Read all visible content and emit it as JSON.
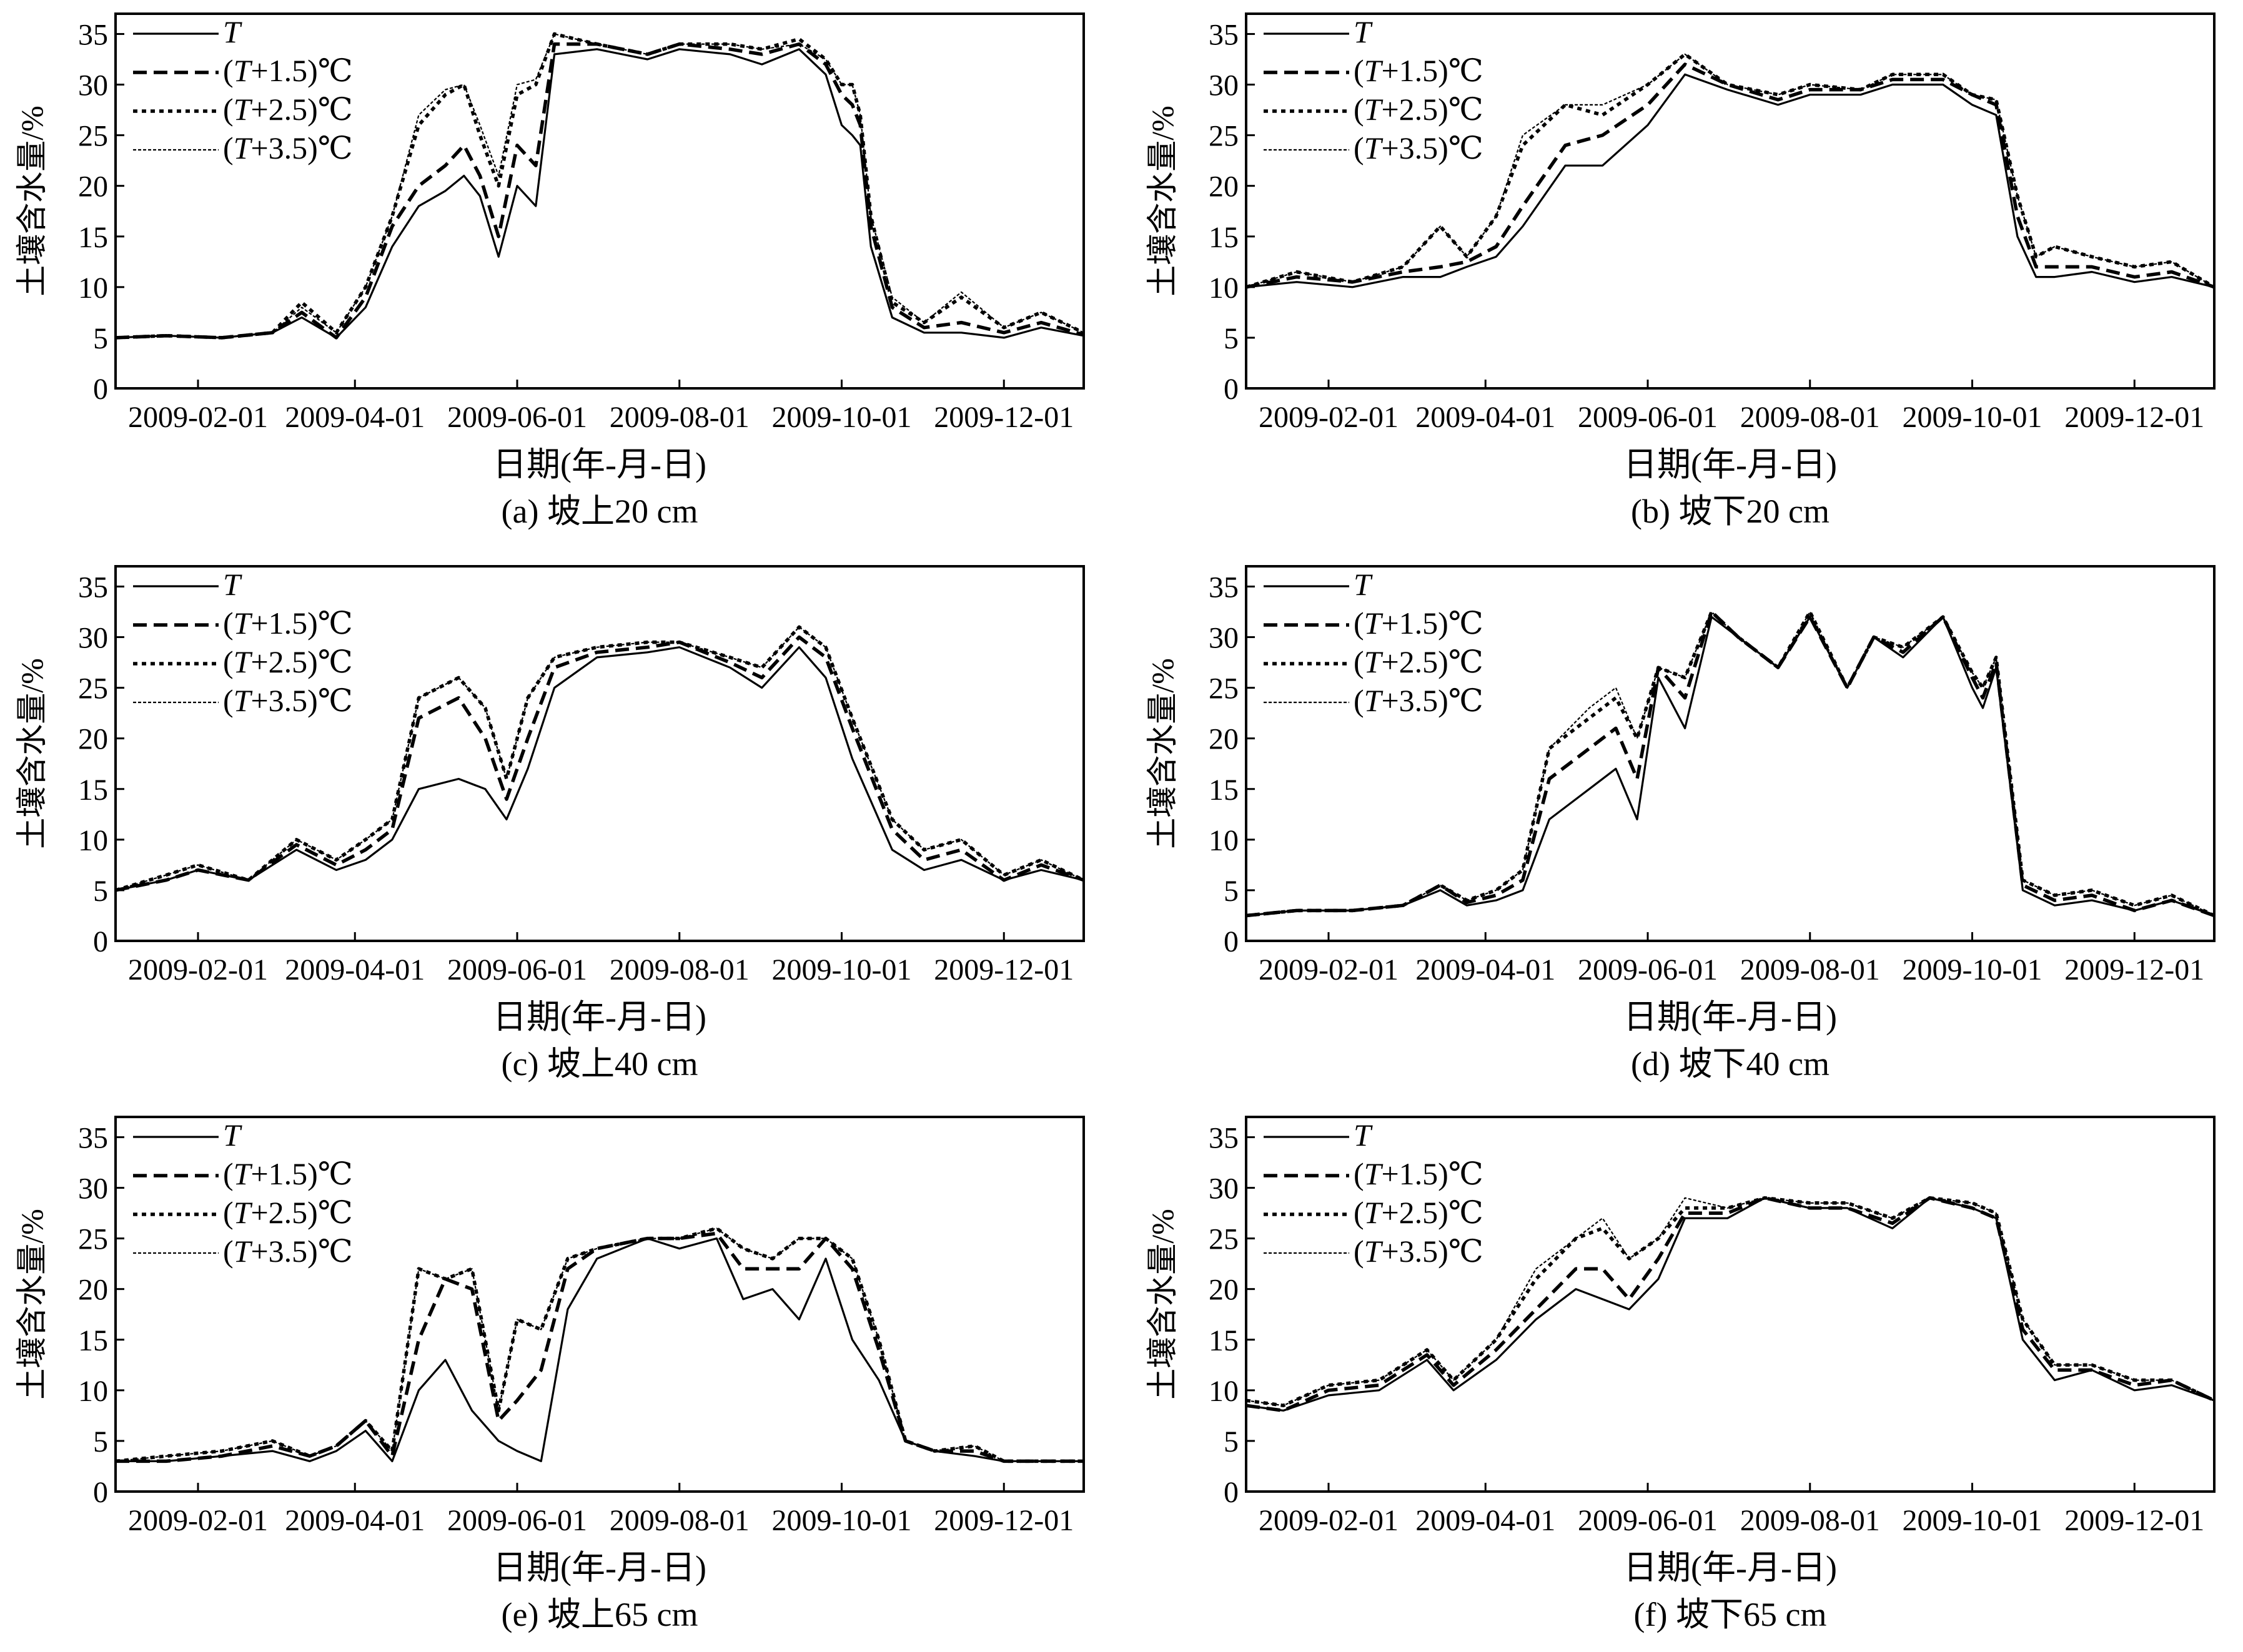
{
  "figure": {
    "ylabel": "土壤含水量/%",
    "xlabel": "日期(年-月-日)",
    "xticks": [
      "2009-02-01",
      "2009-04-01",
      "2009-06-01",
      "2009-08-01",
      "2009-10-01",
      "2009-12-01"
    ],
    "yticks": [
      "0",
      "5",
      "10",
      "15",
      "20",
      "25",
      "30",
      "35"
    ],
    "legend": [
      {
        "key": "T",
        "italic": "T",
        "prefix": "",
        "suffix": "",
        "style": "solid"
      },
      {
        "key": "T15",
        "prefix": "(",
        "italic": "T",
        "suffix": "+1.5)℃",
        "style": "dash"
      },
      {
        "key": "T25",
        "prefix": "(",
        "italic": "T",
        "suffix": "+2.5)℃",
        "style": "dot"
      },
      {
        "key": "T35",
        "prefix": "(",
        "italic": "T",
        "suffix": "+3.5)℃",
        "style": "thin"
      }
    ],
    "line_color": "#000000"
  },
  "chart_data": [
    {
      "type": "line",
      "caption": "(a) 坡上20 cm",
      "xlabel": "日期(年-月-日)",
      "ylabel": "土壤含水量/%",
      "ylim": [
        0,
        37
      ],
      "xlim": [
        "2009-01-01",
        "2009-12-31"
      ],
      "x": [
        "2009-01-01",
        "2009-01-20",
        "2009-02-10",
        "2009-03-01",
        "2009-03-12",
        "2009-03-25",
        "2009-04-05",
        "2009-04-15",
        "2009-04-25",
        "2009-05-05",
        "2009-05-12",
        "2009-05-18",
        "2009-05-25",
        "2009-06-01",
        "2009-06-08",
        "2009-06-15",
        "2009-07-01",
        "2009-07-20",
        "2009-08-01",
        "2009-08-20",
        "2009-09-01",
        "2009-09-15",
        "2009-09-25",
        "2009-10-01",
        "2009-10-05",
        "2009-10-08",
        "2009-10-12",
        "2009-10-20",
        "2009-11-01",
        "2009-11-15",
        "2009-12-01",
        "2009-12-15",
        "2009-12-31"
      ],
      "series": [
        {
          "name": "T",
          "values": [
            5,
            5.2,
            5,
            5.5,
            7,
            5,
            8,
            14,
            18,
            19.5,
            21,
            19,
            13,
            20,
            18,
            33,
            33.5,
            32.5,
            33.5,
            33,
            32,
            33.5,
            31,
            26,
            25,
            24,
            14,
            7,
            5.5,
            5.5,
            5,
            6,
            5.2
          ]
        },
        {
          "name": "(T+1.5)℃",
          "values": [
            5,
            5.2,
            5,
            5.5,
            7.5,
            5,
            9,
            16,
            20,
            22,
            24,
            21,
            15,
            24,
            22,
            34,
            34,
            33,
            34,
            33.5,
            33,
            34,
            32,
            29,
            28,
            26,
            16,
            8,
            6,
            6.5,
            5.5,
            6.5,
            5.3
          ]
        },
        {
          "name": "(T+2.5)℃",
          "values": [
            5,
            5.2,
            5,
            5.5,
            8.5,
            5.5,
            10,
            17,
            26,
            29,
            30,
            25,
            20,
            29,
            30,
            35,
            34,
            33,
            34,
            34,
            33.5,
            34.5,
            32.5,
            30,
            30,
            27,
            17,
            8.5,
            6.5,
            9,
            6,
            7.5,
            5.5
          ]
        },
        {
          "name": "(T+3.5)℃",
          "values": [
            5,
            5.2,
            5,
            5.5,
            8,
            5.5,
            10,
            17,
            27,
            29.5,
            30,
            26,
            21,
            30,
            30.5,
            35,
            34,
            33,
            34,
            34,
            33.5,
            34,
            32.5,
            30,
            30,
            27,
            17,
            9,
            6.5,
            9.5,
            6,
            7.5,
            5.5
          ]
        }
      ]
    },
    {
      "type": "line",
      "caption": "(b) 坡下20 cm",
      "xlabel": "日期(年-月-日)",
      "ylabel": "土壤含水量/%",
      "ylim": [
        0,
        37
      ],
      "xlim": [
        "2009-01-01",
        "2009-12-31"
      ],
      "x": [
        "2009-01-01",
        "2009-01-20",
        "2009-02-10",
        "2009-03-01",
        "2009-03-15",
        "2009-03-25",
        "2009-04-05",
        "2009-04-15",
        "2009-05-01",
        "2009-05-15",
        "2009-06-01",
        "2009-06-15",
        "2009-07-01",
        "2009-07-20",
        "2009-08-01",
        "2009-08-20",
        "2009-09-01",
        "2009-09-20",
        "2009-10-01",
        "2009-10-10",
        "2009-10-18",
        "2009-10-25",
        "2009-11-01",
        "2009-11-15",
        "2009-12-01",
        "2009-12-15",
        "2009-12-31"
      ],
      "series": [
        {
          "name": "T",
          "values": [
            10,
            10.5,
            10,
            11,
            11,
            12,
            13,
            16,
            22,
            22,
            26,
            31,
            29.5,
            28,
            29,
            29,
            30,
            30,
            28,
            27,
            15,
            11,
            11,
            11.5,
            10.5,
            11,
            10
          ]
        },
        {
          "name": "(T+1.5)℃",
          "values": [
            10,
            11,
            10.5,
            11.5,
            12,
            12.5,
            14,
            18,
            24,
            25,
            28,
            32,
            30,
            28.5,
            29.5,
            29.5,
            30.5,
            30.5,
            29,
            28,
            17,
            12,
            12,
            12,
            11,
            11.5,
            10
          ]
        },
        {
          "name": "(T+2.5)℃",
          "values": [
            10,
            11.5,
            10.5,
            12,
            16,
            13,
            17,
            24,
            28,
            27,
            30,
            33,
            30,
            29,
            30,
            29.5,
            31,
            31,
            29,
            28.5,
            19,
            13,
            14,
            13,
            12,
            12.5,
            10
          ]
        },
        {
          "name": "(T+3.5)℃",
          "values": [
            10,
            11.5,
            10.5,
            12,
            16,
            13,
            17,
            25,
            28,
            28,
            30,
            33,
            30,
            29,
            30,
            29.5,
            31,
            31,
            29,
            28.5,
            19,
            13,
            14,
            13,
            12,
            12.5,
            10
          ]
        }
      ]
    },
    {
      "type": "line",
      "caption": "(c) 坡上40 cm",
      "xlabel": "日期(年-月-日)",
      "ylabel": "土壤含水量/%",
      "ylim": [
        0,
        37
      ],
      "xlim": [
        "2009-01-01",
        "2009-12-31"
      ],
      "x": [
        "2009-01-01",
        "2009-01-20",
        "2009-02-01",
        "2009-02-20",
        "2009-03-10",
        "2009-03-25",
        "2009-04-05",
        "2009-04-15",
        "2009-04-25",
        "2009-05-10",
        "2009-05-20",
        "2009-05-28",
        "2009-06-05",
        "2009-06-15",
        "2009-07-01",
        "2009-07-20",
        "2009-08-01",
        "2009-08-20",
        "2009-09-01",
        "2009-09-15",
        "2009-09-25",
        "2009-10-05",
        "2009-10-20",
        "2009-11-01",
        "2009-11-15",
        "2009-12-01",
        "2009-12-15",
        "2009-12-31"
      ],
      "series": [
        {
          "name": "T",
          "values": [
            5,
            6,
            7,
            6,
            9,
            7,
            8,
            10,
            15,
            16,
            15,
            12,
            17,
            25,
            28,
            28.5,
            29,
            27,
            25,
            29,
            26,
            18,
            9,
            7,
            8,
            6,
            7,
            6
          ]
        },
        {
          "name": "(T+1.5)℃",
          "values": [
            5,
            6,
            7,
            6,
            9.5,
            7.5,
            9,
            11,
            22,
            24,
            20,
            14,
            20,
            27,
            28.5,
            29,
            29.5,
            27.5,
            26,
            30,
            28,
            21,
            11,
            8,
            9,
            6,
            7.5,
            6
          ]
        },
        {
          "name": "(T+2.5)℃",
          "values": [
            5,
            6.5,
            7.5,
            6,
            10,
            8,
            10,
            12,
            24,
            26,
            23,
            16,
            24,
            28,
            29,
            29.5,
            29.5,
            28,
            27,
            31,
            29,
            22,
            12,
            9,
            10,
            6.5,
            8,
            6
          ]
        },
        {
          "name": "(T+3.5)℃",
          "values": [
            5,
            6.5,
            7.5,
            6,
            10,
            8,
            10,
            12,
            24,
            26,
            23,
            16,
            24,
            28,
            29,
            29.5,
            29.5,
            28,
            27,
            31,
            29,
            22,
            12,
            9,
            10,
            6.5,
            8,
            6
          ]
        }
      ]
    },
    {
      "type": "line",
      "caption": "(d) 坡下40 cm",
      "xlabel": "日期(年-月-日)",
      "ylabel": "土壤含水量/%",
      "ylim": [
        0,
        37
      ],
      "xlim": [
        "2009-01-01",
        "2009-12-31"
      ],
      "x": [
        "2009-01-01",
        "2009-01-20",
        "2009-02-10",
        "2009-03-01",
        "2009-03-15",
        "2009-03-25",
        "2009-04-05",
        "2009-04-15",
        "2009-04-25",
        "2009-05-10",
        "2009-05-20",
        "2009-05-28",
        "2009-06-05",
        "2009-06-15",
        "2009-06-25",
        "2009-07-05",
        "2009-07-20",
        "2009-08-01",
        "2009-08-15",
        "2009-08-25",
        "2009-09-05",
        "2009-09-20",
        "2009-10-01",
        "2009-10-05",
        "2009-10-10",
        "2009-10-20",
        "2009-11-01",
        "2009-11-15",
        "2009-12-01",
        "2009-12-15",
        "2009-12-31"
      ],
      "series": [
        {
          "name": "T",
          "values": [
            2.5,
            3,
            3,
            3.5,
            5,
            3.5,
            4,
            5,
            12,
            15,
            17,
            12,
            26,
            21,
            32,
            30,
            27,
            32,
            25,
            30,
            28,
            32,
            25,
            23,
            27,
            5,
            3.5,
            4,
            3,
            4,
            2.5
          ]
        },
        {
          "name": "(T+1.5)℃",
          "values": [
            2.5,
            3,
            3,
            3.5,
            5.5,
            3.8,
            4.5,
            6,
            16,
            19,
            21,
            16,
            27,
            24,
            32.5,
            30,
            27,
            32,
            25,
            30,
            28.5,
            32,
            26,
            24,
            27.5,
            5.5,
            4,
            4.5,
            3,
            4,
            2.5
          ]
        },
        {
          "name": "(T+2.5)℃",
          "values": [
            2.5,
            3,
            3,
            3.5,
            5.5,
            4,
            5,
            7,
            19,
            22,
            24,
            20,
            27,
            26,
            32.5,
            30,
            27,
            32.5,
            25,
            30,
            29,
            32,
            26.5,
            25,
            28,
            6,
            4.5,
            5,
            3.5,
            4.5,
            2.5
          ]
        },
        {
          "name": "(T+3.5)℃",
          "values": [
            2.5,
            3,
            3,
            3.5,
            5.5,
            4,
            5,
            7,
            19,
            23,
            25,
            20,
            27,
            26,
            32.5,
            30,
            27,
            32.5,
            25,
            30,
            29,
            32,
            26.5,
            25,
            28,
            6,
            4.5,
            5,
            3.5,
            4.5,
            2.5
          ]
        }
      ]
    },
    {
      "type": "line",
      "caption": "(e) 坡上65 cm",
      "xlabel": "日期(年-月-日)",
      "ylabel": "土壤含水量/%",
      "ylim": [
        0,
        37
      ],
      "xlim": [
        "2009-01-01",
        "2009-12-31"
      ],
      "x": [
        "2009-01-01",
        "2009-01-20",
        "2009-02-10",
        "2009-03-01",
        "2009-03-15",
        "2009-03-25",
        "2009-04-05",
        "2009-04-15",
        "2009-04-25",
        "2009-05-05",
        "2009-05-15",
        "2009-05-25",
        "2009-06-01",
        "2009-06-10",
        "2009-06-20",
        "2009-07-01",
        "2009-07-20",
        "2009-08-01",
        "2009-08-15",
        "2009-08-25",
        "2009-09-05",
        "2009-09-15",
        "2009-09-25",
        "2009-10-05",
        "2009-10-15",
        "2009-10-25",
        "2009-11-05",
        "2009-11-20",
        "2009-12-01",
        "2009-12-15",
        "2009-12-31"
      ],
      "series": [
        {
          "name": "T",
          "values": [
            3,
            3,
            3.5,
            4,
            3,
            4,
            6,
            3,
            10,
            13,
            8,
            5,
            4,
            3,
            18,
            23,
            25,
            24,
            25,
            19,
            20,
            17,
            23,
            15,
            11,
            5,
            4,
            3.5,
            3,
            3,
            3
          ]
        },
        {
          "name": "(T+1.5)℃",
          "values": [
            3,
            3,
            3.5,
            4.5,
            3.5,
            4.5,
            7,
            3.5,
            15,
            21,
            20,
            7,
            9,
            12,
            22,
            24,
            25,
            25,
            25.5,
            22,
            22,
            22,
            25,
            22,
            14,
            5,
            4,
            4,
            3,
            3,
            3
          ]
        },
        {
          "name": "(T+2.5)℃",
          "values": [
            3,
            3.5,
            4,
            5,
            3.5,
            4.5,
            7,
            4,
            22,
            21,
            22,
            8,
            17,
            16,
            23,
            24,
            25,
            25,
            26,
            24,
            23,
            25,
            25,
            23,
            15,
            5,
            4,
            4.5,
            3,
            3,
            3
          ]
        },
        {
          "name": "(T+3.5)℃",
          "values": [
            3,
            3.5,
            4,
            5,
            3.5,
            4.5,
            7,
            4,
            22,
            21,
            22,
            8,
            17,
            16,
            23,
            24,
            25,
            25,
            26,
            24,
            23,
            25,
            25,
            23,
            15,
            5,
            4,
            4.5,
            3,
            3,
            3
          ]
        }
      ]
    },
    {
      "type": "line",
      "caption": "(f) 坡下65 cm",
      "xlabel": "日期(年-月-日)",
      "ylabel": "土壤含水量/%",
      "ylim": [
        0,
        37
      ],
      "xlim": [
        "2009-01-01",
        "2009-12-31"
      ],
      "x": [
        "2009-01-01",
        "2009-01-15",
        "2009-02-01",
        "2009-02-20",
        "2009-03-10",
        "2009-03-20",
        "2009-04-05",
        "2009-04-20",
        "2009-05-05",
        "2009-05-15",
        "2009-05-25",
        "2009-06-05",
        "2009-06-15",
        "2009-07-01",
        "2009-07-15",
        "2009-08-01",
        "2009-08-15",
        "2009-09-01",
        "2009-09-15",
        "2009-10-01",
        "2009-10-10",
        "2009-10-20",
        "2009-11-01",
        "2009-11-15",
        "2009-12-01",
        "2009-12-15",
        "2009-12-31"
      ],
      "series": [
        {
          "name": "T",
          "values": [
            8.5,
            8,
            9.5,
            10,
            13,
            10,
            13,
            17,
            20,
            19,
            18,
            21,
            27,
            27,
            29,
            28,
            28,
            26,
            29,
            28,
            27,
            15,
            11,
            12,
            10,
            10.5,
            9
          ]
        },
        {
          "name": "(T+1.5)℃",
          "values": [
            8.5,
            8,
            10,
            10.5,
            13.5,
            10.5,
            14,
            18,
            22,
            22,
            19,
            23,
            27.5,
            27.5,
            29,
            28,
            28,
            26.5,
            29,
            28,
            27,
            16,
            12,
            12,
            10.5,
            11,
            9
          ]
        },
        {
          "name": "(T+2.5)℃",
          "values": [
            9,
            8.5,
            10.5,
            11,
            14,
            11,
            15,
            21,
            25,
            26,
            23,
            25,
            28,
            28,
            29,
            28.5,
            28.5,
            27,
            29,
            28.5,
            27.5,
            17,
            12.5,
            12.5,
            11,
            11,
            9
          ]
        },
        {
          "name": "(T+3.5)℃",
          "values": [
            9,
            8.5,
            10.5,
            11,
            14,
            11,
            15,
            22,
            25,
            27,
            23,
            25,
            29,
            28,
            29,
            28.5,
            28.5,
            27,
            29,
            28.5,
            27.5,
            17,
            12.5,
            12.5,
            11,
            11,
            9
          ]
        }
      ]
    }
  ]
}
